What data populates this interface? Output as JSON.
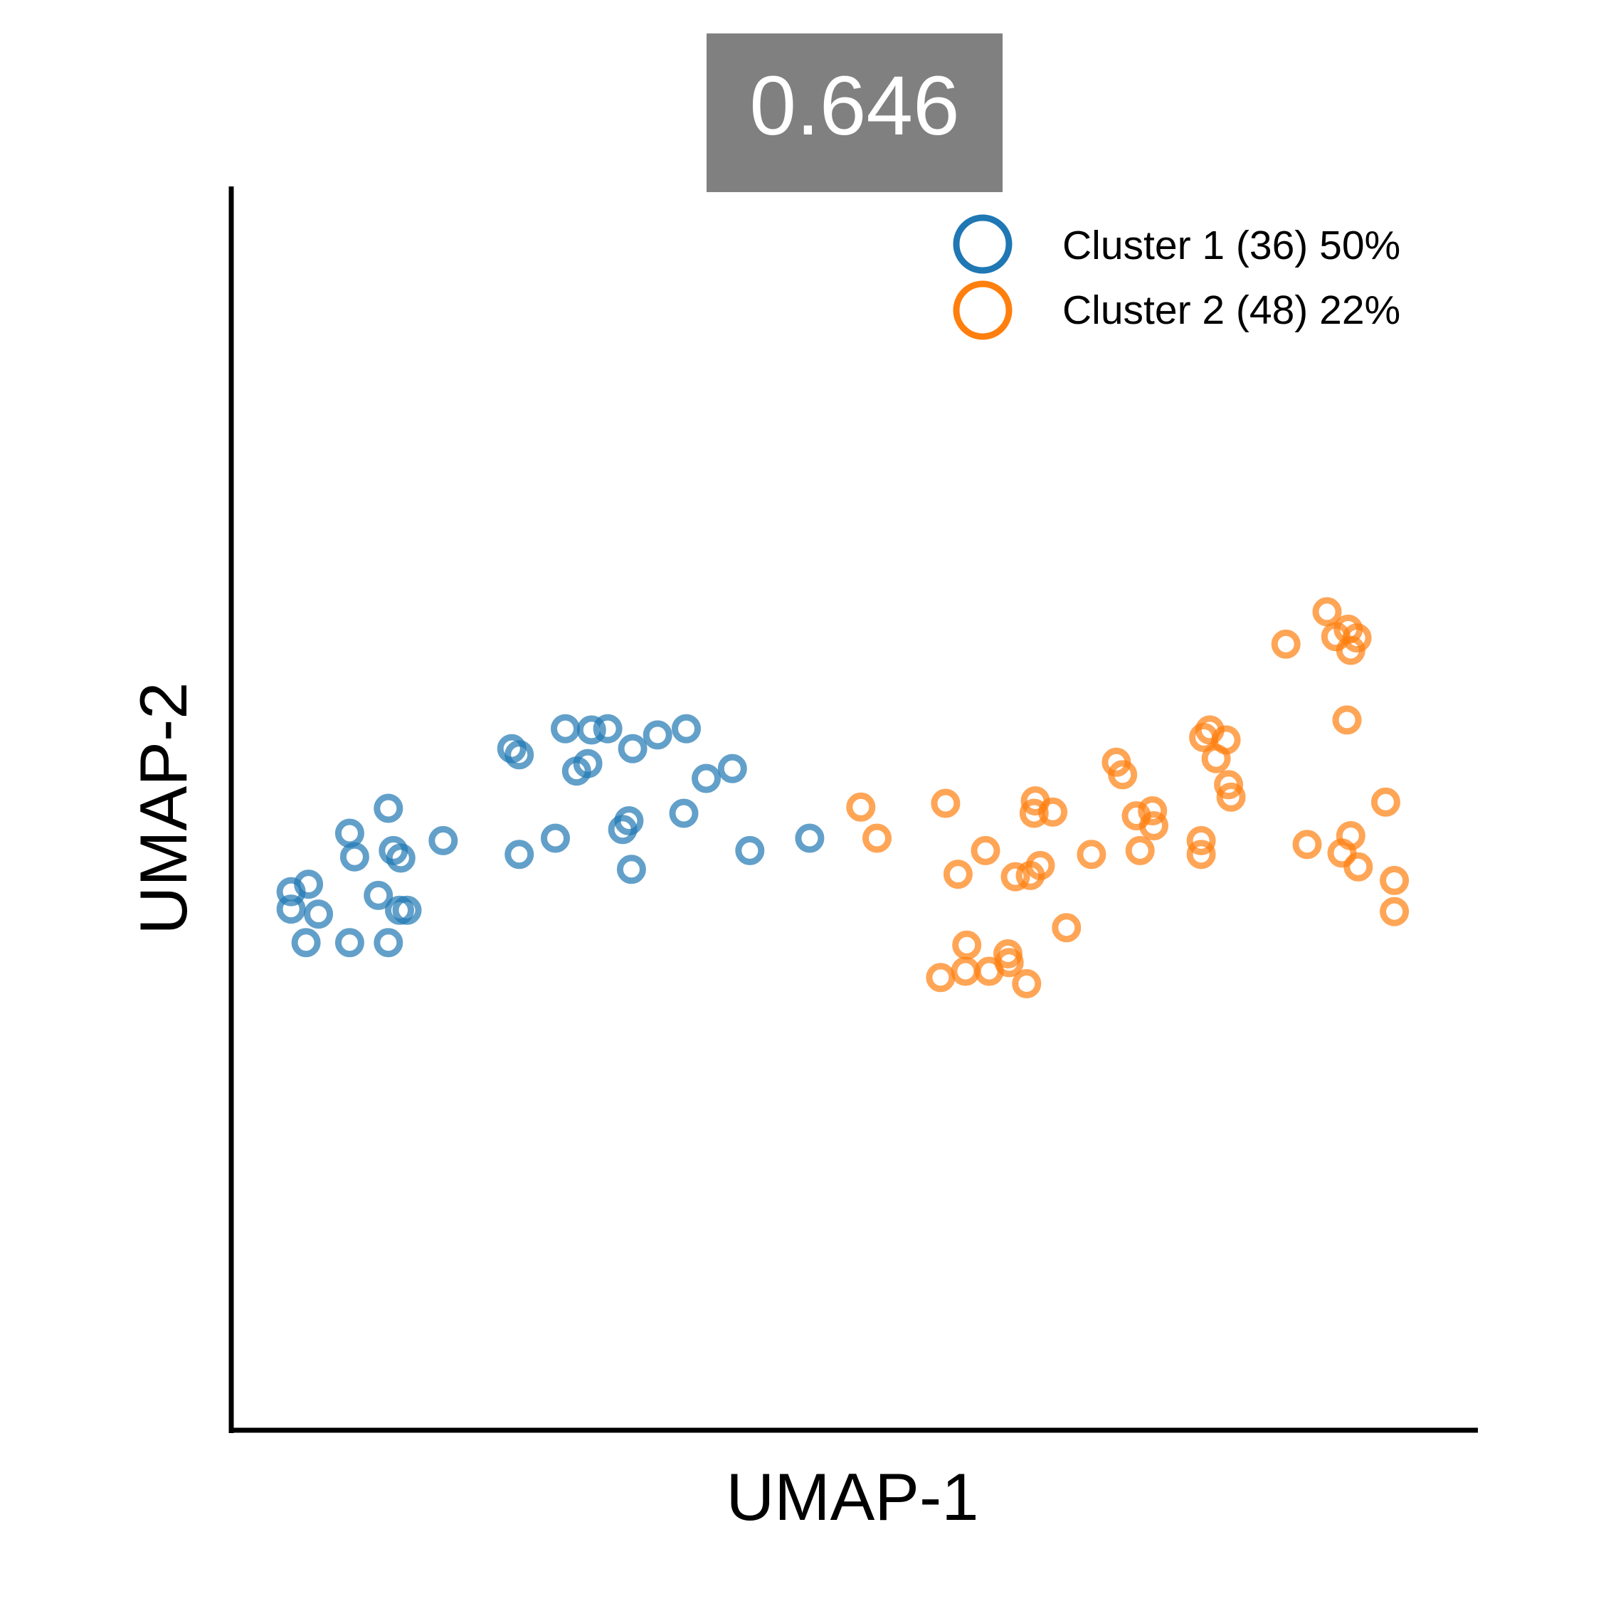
{
  "chart_data": {
    "type": "scatter",
    "score": "0.646",
    "xlabel": "UMAP-1",
    "ylabel": "UMAP-2",
    "ticks": "none",
    "grid": false,
    "legend_position": "top-right",
    "xlim": [
      0,
      100
    ],
    "ylim": [
      0,
      100
    ],
    "marker": "hollow-circle",
    "colors": {
      "score_box": "#808080",
      "axis": "#000000"
    },
    "series": [
      {
        "name": "Cluster 1",
        "label": "Cluster 1 (36) 50%",
        "color": "#1f77b4",
        "points": [
          [
            4.8,
            43.3
          ],
          [
            4.8,
            41.9
          ],
          [
            6.2,
            43.9
          ],
          [
            7.0,
            41.5
          ],
          [
            6.0,
            39.2
          ],
          [
            9.5,
            39.2
          ],
          [
            9.5,
            48.0
          ],
          [
            9.9,
            46.1
          ],
          [
            11.8,
            43.0
          ],
          [
            12.6,
            50.0
          ],
          [
            13.0,
            46.6
          ],
          [
            13.6,
            46.0
          ],
          [
            13.5,
            41.8
          ],
          [
            14.1,
            41.8
          ],
          [
            12.6,
            39.2
          ],
          [
            17.0,
            47.4
          ],
          [
            22.5,
            54.8
          ],
          [
            23.1,
            54.3
          ],
          [
            23.1,
            46.3
          ],
          [
            26.0,
            47.6
          ],
          [
            26.8,
            56.4
          ],
          [
            27.7,
            53.0
          ],
          [
            28.6,
            53.6
          ],
          [
            28.9,
            56.3
          ],
          [
            30.2,
            56.4
          ],
          [
            31.4,
            48.3
          ],
          [
            31.9,
            49.0
          ],
          [
            32.1,
            45.1
          ],
          [
            32.2,
            54.8
          ],
          [
            34.2,
            55.9
          ],
          [
            36.3,
            49.6
          ],
          [
            38.1,
            52.4
          ],
          [
            36.5,
            56.4
          ],
          [
            40.2,
            53.2
          ],
          [
            41.6,
            46.6
          ],
          [
            46.4,
            47.6
          ]
        ]
      },
      {
        "name": "Cluster 2",
        "label": "Cluster 2 (48) 22%",
        "color": "#ff7f0e",
        "points": [
          [
            50.5,
            50.1
          ],
          [
            51.8,
            47.6
          ],
          [
            57.3,
            50.4
          ],
          [
            58.3,
            44.7
          ],
          [
            56.9,
            36.4
          ],
          [
            58.9,
            36.9
          ],
          [
            60.8,
            36.9
          ],
          [
            59.0,
            39.0
          ],
          [
            60.5,
            46.6
          ],
          [
            62.3,
            38.3
          ],
          [
            62.4,
            37.6
          ],
          [
            62.9,
            44.5
          ],
          [
            63.8,
            35.9
          ],
          [
            64.1,
            44.6
          ],
          [
            64.4,
            49.6
          ],
          [
            64.5,
            50.6
          ],
          [
            64.9,
            45.4
          ],
          [
            65.9,
            49.7
          ],
          [
            67.0,
            40.4
          ],
          [
            69.0,
            46.3
          ],
          [
            71.0,
            53.7
          ],
          [
            71.5,
            52.7
          ],
          [
            72.6,
            49.4
          ],
          [
            73.9,
            49.8
          ],
          [
            74.0,
            48.6
          ],
          [
            72.9,
            46.6
          ],
          [
            77.8,
            46.3
          ],
          [
            77.8,
            47.4
          ],
          [
            78.0,
            55.7
          ],
          [
            78.5,
            56.3
          ],
          [
            79.0,
            54.0
          ],
          [
            79.8,
            55.5
          ],
          [
            80.0,
            51.9
          ],
          [
            80.2,
            50.9
          ],
          [
            84.6,
            63.2
          ],
          [
            87.9,
            65.8
          ],
          [
            88.6,
            63.8
          ],
          [
            89.5,
            57.1
          ],
          [
            89.6,
            64.4
          ],
          [
            89.8,
            62.7
          ],
          [
            90.3,
            63.7
          ],
          [
            89.1,
            46.4
          ],
          [
            86.3,
            47.1
          ],
          [
            89.8,
            47.8
          ],
          [
            90.4,
            45.3
          ],
          [
            92.6,
            50.5
          ],
          [
            93.3,
            44.2
          ],
          [
            93.3,
            41.7
          ]
        ]
      }
    ]
  }
}
